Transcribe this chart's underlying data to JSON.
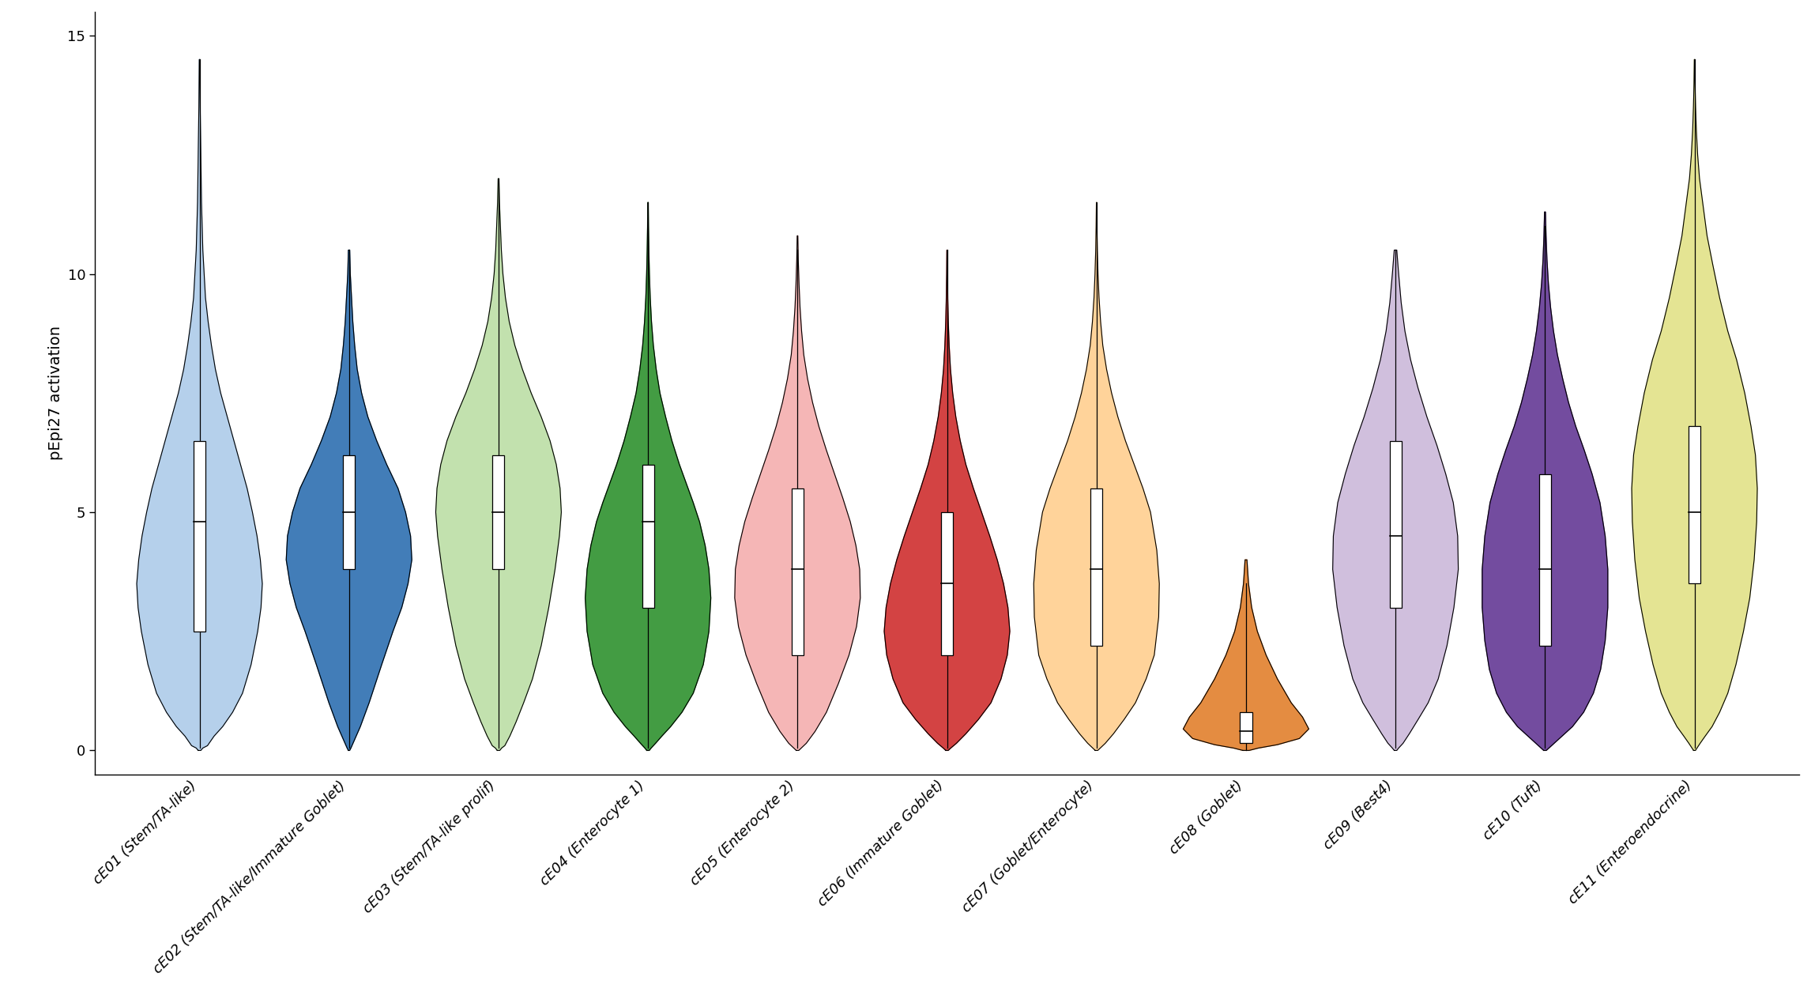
{
  "categories": [
    "cE01 (Stem/TA-like)",
    "cE02 (Stem/TA-like/Immature Goblet)",
    "cE03 (Stem/TA-like prolif)",
    "cE04 (Enterocyte 1)",
    "cE05 (Enterocyte 2)",
    "cE06 (Immature Goblet)",
    "cE07 (Goblet/Enterocyte)",
    "cE08 (Goblet)",
    "cE09 (Best4)",
    "cE10 (Tuft)",
    "cE11 (Enteroendocrine)"
  ],
  "colors": [
    "#A8C8E8",
    "#2166AC",
    "#B8DCA0",
    "#228B22",
    "#F4AAAA",
    "#CC2222",
    "#FFCC88",
    "#E07820",
    "#C8B4D8",
    "#5B2D8E",
    "#E0E080"
  ],
  "violins": [
    {
      "name": "cE01",
      "y_vals": [
        0.0,
        0.05,
        0.1,
        0.3,
        0.5,
        0.8,
        1.2,
        1.8,
        2.5,
        3.0,
        3.5,
        4.0,
        4.5,
        5.0,
        5.5,
        6.0,
        6.5,
        7.0,
        7.5,
        8.0,
        8.5,
        9.0,
        9.5,
        10.0,
        10.5,
        11.0,
        11.5,
        12.0,
        12.5,
        13.0,
        13.5,
        14.0,
        14.5
      ],
      "widths": [
        0.02,
        0.05,
        0.12,
        0.22,
        0.35,
        0.5,
        0.65,
        0.78,
        0.88,
        0.93,
        0.95,
        0.92,
        0.87,
        0.8,
        0.72,
        0.62,
        0.52,
        0.42,
        0.32,
        0.24,
        0.18,
        0.13,
        0.09,
        0.07,
        0.05,
        0.04,
        0.03,
        0.025,
        0.02,
        0.015,
        0.01,
        0.007,
        0.004
      ],
      "median": 4.8,
      "q1": 2.5,
      "q3": 6.5,
      "whisker_low": 0.05,
      "whisker_high": 14.5
    },
    {
      "name": "cE02",
      "y_vals": [
        0.0,
        0.05,
        0.2,
        0.5,
        1.0,
        1.8,
        2.5,
        3.0,
        3.5,
        4.0,
        4.5,
        5.0,
        5.5,
        6.0,
        6.5,
        7.0,
        7.5,
        8.0,
        8.5,
        9.0,
        9.5,
        10.0,
        10.5
      ],
      "widths": [
        0.01,
        0.03,
        0.08,
        0.18,
        0.32,
        0.52,
        0.7,
        0.84,
        0.94,
        1.0,
        0.98,
        0.9,
        0.78,
        0.6,
        0.44,
        0.3,
        0.2,
        0.13,
        0.09,
        0.06,
        0.04,
        0.02,
        0.01
      ],
      "median": 5.0,
      "q1": 3.8,
      "q3": 6.2,
      "whisker_low": 0.05,
      "whisker_high": 10.5
    },
    {
      "name": "cE03",
      "y_vals": [
        0.0,
        0.05,
        0.1,
        0.3,
        0.6,
        1.0,
        1.5,
        2.2,
        3.0,
        3.8,
        4.5,
        5.0,
        5.5,
        6.0,
        6.5,
        7.0,
        7.5,
        8.0,
        8.5,
        9.0,
        9.5,
        10.0,
        10.5,
        11.0,
        11.5,
        12.0
      ],
      "widths": [
        0.02,
        0.05,
        0.1,
        0.18,
        0.28,
        0.4,
        0.54,
        0.68,
        0.8,
        0.9,
        0.97,
        1.0,
        0.98,
        0.92,
        0.82,
        0.68,
        0.52,
        0.38,
        0.26,
        0.17,
        0.11,
        0.07,
        0.045,
        0.03,
        0.015,
        0.006
      ],
      "median": 5.0,
      "q1": 3.8,
      "q3": 6.2,
      "whisker_low": 0.05,
      "whisker_high": 12.0
    },
    {
      "name": "cE04",
      "y_vals": [
        0.0,
        0.05,
        0.15,
        0.3,
        0.5,
        0.8,
        1.2,
        1.8,
        2.5,
        3.2,
        3.8,
        4.3,
        4.8,
        5.2,
        5.6,
        6.0,
        6.5,
        7.0,
        7.5,
        8.0,
        8.5,
        9.0,
        9.5,
        10.0,
        10.5,
        11.0,
        11.5
      ],
      "widths": [
        0.02,
        0.05,
        0.12,
        0.22,
        0.36,
        0.54,
        0.72,
        0.88,
        0.97,
        1.0,
        0.97,
        0.91,
        0.82,
        0.72,
        0.61,
        0.5,
        0.38,
        0.28,
        0.19,
        0.13,
        0.085,
        0.055,
        0.035,
        0.022,
        0.013,
        0.007,
        0.003
      ],
      "median": 4.8,
      "q1": 3.0,
      "q3": 6.0,
      "whisker_low": 0.05,
      "whisker_high": 11.5
    },
    {
      "name": "cE05",
      "y_vals": [
        0.0,
        0.05,
        0.15,
        0.4,
        0.8,
        1.4,
        2.0,
        2.6,
        3.2,
        3.8,
        4.3,
        4.8,
        5.3,
        5.8,
        6.3,
        6.8,
        7.3,
        7.8,
        8.3,
        8.8,
        9.3,
        9.8,
        10.3,
        10.8
      ],
      "widths": [
        0.02,
        0.06,
        0.14,
        0.28,
        0.46,
        0.65,
        0.82,
        0.94,
        1.0,
        0.99,
        0.93,
        0.84,
        0.72,
        0.59,
        0.46,
        0.34,
        0.24,
        0.16,
        0.1,
        0.065,
        0.04,
        0.024,
        0.012,
        0.005
      ],
      "median": 3.8,
      "q1": 2.0,
      "q3": 5.5,
      "whisker_low": 0.05,
      "whisker_high": 10.5
    },
    {
      "name": "cE06",
      "y_vals": [
        0.0,
        0.05,
        0.15,
        0.35,
        0.65,
        1.0,
        1.5,
        2.0,
        2.5,
        3.0,
        3.5,
        4.0,
        4.5,
        5.0,
        5.5,
        6.0,
        6.5,
        7.0,
        7.5,
        8.0,
        8.5,
        9.0,
        9.5,
        10.0,
        10.5
      ],
      "widths": [
        0.02,
        0.06,
        0.15,
        0.3,
        0.5,
        0.7,
        0.86,
        0.96,
        1.0,
        0.97,
        0.9,
        0.8,
        0.68,
        0.55,
        0.42,
        0.3,
        0.21,
        0.14,
        0.09,
        0.055,
        0.034,
        0.02,
        0.011,
        0.005,
        0.002
      ],
      "median": 3.5,
      "q1": 2.0,
      "q3": 5.0,
      "whisker_low": 0.05,
      "whisker_high": 10.5
    },
    {
      "name": "cE07",
      "y_vals": [
        0.0,
        0.05,
        0.15,
        0.35,
        0.65,
        1.0,
        1.5,
        2.0,
        2.8,
        3.5,
        4.2,
        5.0,
        5.5,
        6.0,
        6.5,
        7.0,
        7.5,
        8.0,
        8.5,
        9.0,
        9.5,
        10.0,
        10.5,
        11.0,
        11.5
      ],
      "widths": [
        0.02,
        0.06,
        0.14,
        0.27,
        0.44,
        0.62,
        0.79,
        0.92,
        0.99,
        1.0,
        0.96,
        0.86,
        0.74,
        0.6,
        0.46,
        0.34,
        0.24,
        0.16,
        0.1,
        0.065,
        0.04,
        0.024,
        0.013,
        0.006,
        0.002
      ],
      "median": 3.8,
      "q1": 2.2,
      "q3": 5.5,
      "whisker_low": 0.05,
      "whisker_high": 11.5
    },
    {
      "name": "cE08",
      "y_vals": [
        0.0,
        0.05,
        0.12,
        0.25,
        0.45,
        0.7,
        1.0,
        1.5,
        2.0,
        2.5,
        3.0,
        3.5,
        4.0
      ],
      "widths": [
        0.05,
        0.2,
        0.5,
        0.85,
        1.0,
        0.9,
        0.72,
        0.5,
        0.32,
        0.18,
        0.09,
        0.04,
        0.015
      ],
      "median": 0.4,
      "q1": 0.15,
      "q3": 0.8,
      "whisker_low": 0.0,
      "whisker_high": 3.5
    },
    {
      "name": "cE09",
      "y_vals": [
        0.0,
        0.05,
        0.15,
        0.35,
        0.65,
        1.0,
        1.5,
        2.2,
        3.0,
        3.8,
        4.5,
        5.2,
        5.8,
        6.4,
        7.0,
        7.6,
        8.2,
        8.8,
        9.4,
        10.0,
        10.5
      ],
      "widths": [
        0.02,
        0.05,
        0.12,
        0.22,
        0.36,
        0.52,
        0.68,
        0.82,
        0.93,
        1.0,
        0.99,
        0.92,
        0.8,
        0.66,
        0.5,
        0.36,
        0.24,
        0.15,
        0.09,
        0.05,
        0.02
      ],
      "median": 4.5,
      "q1": 3.0,
      "q3": 6.5,
      "whisker_low": 0.05,
      "whisker_high": 10.5
    },
    {
      "name": "cE10",
      "y_vals": [
        0.0,
        0.05,
        0.15,
        0.3,
        0.5,
        0.8,
        1.2,
        1.7,
        2.3,
        3.0,
        3.8,
        4.5,
        5.2,
        5.8,
        6.3,
        6.8,
        7.3,
        7.8,
        8.3,
        8.8,
        9.3,
        9.8,
        10.3,
        10.8,
        11.3
      ],
      "widths": [
        0.02,
        0.06,
        0.14,
        0.26,
        0.42,
        0.59,
        0.74,
        0.85,
        0.92,
        0.96,
        0.96,
        0.92,
        0.84,
        0.72,
        0.6,
        0.47,
        0.36,
        0.27,
        0.19,
        0.13,
        0.085,
        0.052,
        0.03,
        0.016,
        0.007
      ],
      "median": 3.8,
      "q1": 2.2,
      "q3": 5.8,
      "whisker_low": 0.05,
      "whisker_high": 11.0
    },
    {
      "name": "cE11",
      "y_vals": [
        0.0,
        0.05,
        0.15,
        0.3,
        0.5,
        0.8,
        1.2,
        1.8,
        2.5,
        3.2,
        4.0,
        4.8,
        5.5,
        6.2,
        6.8,
        7.5,
        8.2,
        8.8,
        9.5,
        10.2,
        10.8,
        11.5,
        12.0,
        12.5,
        13.0,
        13.5,
        14.0,
        14.5
      ],
      "widths": [
        0.015,
        0.04,
        0.09,
        0.17,
        0.28,
        0.4,
        0.53,
        0.66,
        0.78,
        0.88,
        0.95,
        0.99,
        1.0,
        0.97,
        0.9,
        0.8,
        0.67,
        0.53,
        0.4,
        0.29,
        0.2,
        0.13,
        0.08,
        0.05,
        0.03,
        0.017,
        0.008,
        0.003
      ],
      "median": 5.0,
      "q1": 3.5,
      "q3": 6.8,
      "whisker_low": 0.05,
      "whisker_high": 14.5
    }
  ],
  "ylabel": "pEpi27 activation",
  "ylim": [
    -0.5,
    15.5
  ],
  "yticks": [
    0,
    5,
    10,
    15
  ],
  "background_color": "#ffffff",
  "label_fontsize": 13,
  "tick_fontsize": 13
}
